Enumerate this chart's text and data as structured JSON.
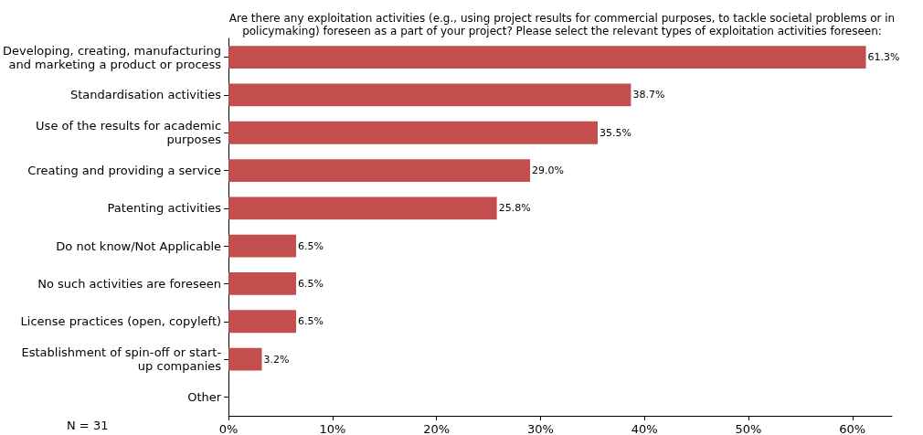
{
  "chart_data": {
    "type": "bar",
    "orientation": "horizontal",
    "title": "Are there any exploitation activities (e.g., using project results for commercial purposes, to tackle societal problems or in\npolicymaking) foreseen as a part of your project? Please select the relevant types of exploitation activities foreseen:",
    "categories": [
      "Developing, creating, manufacturing\nand marketing a product or process",
      "Standardisation activities",
      "Use of the results for academic\npurposes",
      "Creating and providing a service",
      "Patenting activities",
      "Do not know/Not Applicable",
      "No such activities are foreseen",
      "License practices (open, copyleft)",
      "Establishment of spin-off or start-\nup companies",
      "Other"
    ],
    "values": [
      61.3,
      38.7,
      35.5,
      29.0,
      25.8,
      6.5,
      6.5,
      6.5,
      3.2,
      0
    ],
    "value_labels": [
      "61.3%",
      "38.7%",
      "35.5%",
      "29.0%",
      "25.8%",
      "6.5%",
      "6.5%",
      "6.5%",
      "3.2%",
      null
    ],
    "color": "#c44e4e",
    "xlim": [
      0,
      63.8
    ],
    "xticks": [
      {
        "value": 0,
        "label": "0%"
      },
      {
        "value": 10,
        "label": "10%"
      },
      {
        "value": 20,
        "label": "20%"
      },
      {
        "value": 30,
        "label": "30%"
      },
      {
        "value": 40,
        "label": "40%"
      },
      {
        "value": 50,
        "label": "50%"
      },
      {
        "value": 60,
        "label": "60%"
      }
    ],
    "grid": false,
    "annotations": [
      "N = 31"
    ]
  }
}
